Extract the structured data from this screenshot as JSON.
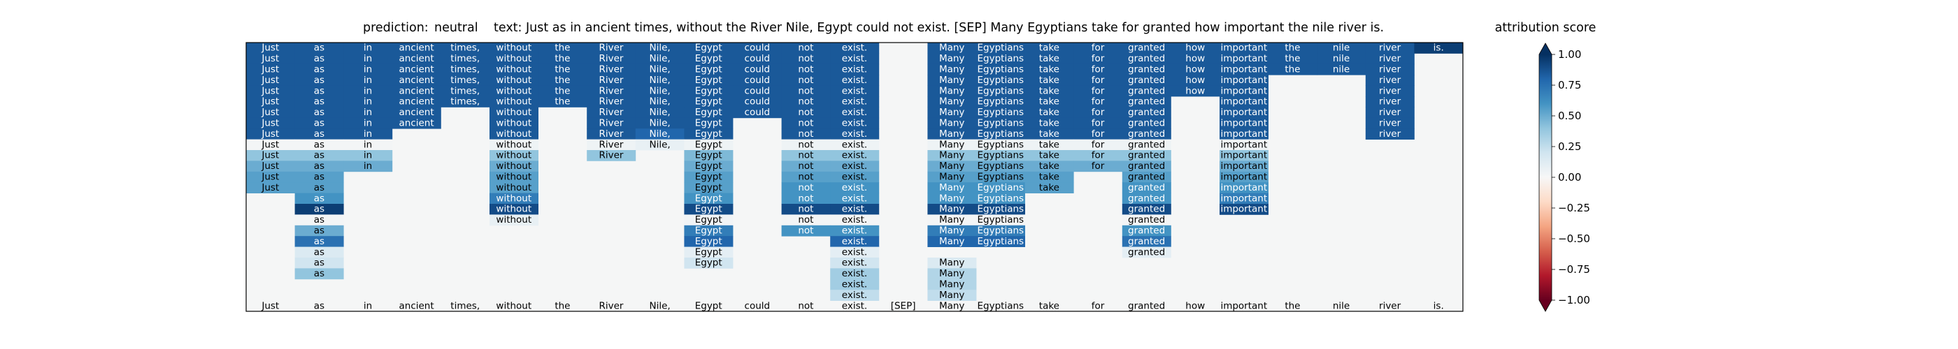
{
  "chart_data": {
    "type": "heatmap",
    "prediction_label": "prediction:",
    "prediction": "neutral",
    "text_label": "text:",
    "text": "Just as in ancient times, without the River Nile, Egypt could not exist. [SEP] Many Egyptians take for granted how important the nile river is.",
    "tokens": [
      "Just",
      "as",
      "in",
      "ancient",
      "times,",
      "without",
      "the",
      "River",
      "Nile,",
      "Egypt",
      "could",
      "not",
      "exist.",
      "[SEP]",
      "Many",
      "Egyptians",
      "take",
      "for",
      "granted",
      "how",
      "important",
      "the",
      "nile",
      "river",
      "is."
    ],
    "colorbar": {
      "title": "attribution score",
      "range": [
        -1,
        1
      ],
      "ticks": [
        "1.00",
        "0.75",
        "0.50",
        "0.25",
        "0.00",
        "−0.25",
        "−0.50",
        "−0.75",
        "−1.00"
      ],
      "colormap": "RdBu",
      "colors": [
        "#67001f",
        "#b2182b",
        "#d6604d",
        "#f4a582",
        "#fddbc7",
        "#f7f7f7",
        "#d1e5f0",
        "#92c5de",
        "#4393c3",
        "#2166ac",
        "#053061"
      ]
    },
    "row_labels": [
      "is.",
      "river",
      "nile",
      "the",
      "important",
      "how",
      "granted",
      "for",
      "take",
      "Egyptians",
      "Many",
      "[SEP]",
      "exist.",
      "not",
      "could",
      "Egypt",
      "Nile,",
      "River",
      "the",
      "without",
      "times,",
      "ancient",
      "in",
      "as",
      "Just"
    ],
    "matrix": [
      [
        0.85,
        0.85,
        0.85,
        0.85,
        0.85,
        0.85,
        0.85,
        0.85,
        0.85,
        0.85,
        0.85,
        0.85,
        0.85,
        null,
        0.85,
        0.85,
        0.85,
        0.85,
        0.85,
        0.85,
        0.85,
        0.85,
        0.85,
        0.85,
        0.95
      ],
      [
        0.85,
        0.85,
        0.85,
        0.85,
        0.85,
        0.85,
        0.85,
        0.85,
        0.85,
        0.85,
        0.85,
        0.85,
        0.85,
        null,
        0.85,
        0.85,
        0.85,
        0.85,
        0.85,
        0.85,
        0.85,
        0.85,
        0.85,
        0.85,
        null
      ],
      [
        0.85,
        0.85,
        0.85,
        0.85,
        0.85,
        0.85,
        0.85,
        0.85,
        0.85,
        0.85,
        0.85,
        0.85,
        0.85,
        null,
        0.85,
        0.85,
        0.85,
        0.85,
        0.85,
        0.85,
        0.85,
        0.85,
        0.85,
        0.85,
        null
      ],
      [
        0.85,
        0.85,
        0.85,
        0.85,
        0.85,
        0.85,
        0.85,
        0.85,
        0.85,
        0.85,
        0.85,
        0.85,
        0.85,
        null,
        0.85,
        0.85,
        0.85,
        0.85,
        0.85,
        0.85,
        0.85,
        null,
        null,
        0.85,
        null
      ],
      [
        0.85,
        0.85,
        0.85,
        0.85,
        0.85,
        0.85,
        0.85,
        0.85,
        0.85,
        0.85,
        0.85,
        0.85,
        0.85,
        null,
        0.85,
        0.85,
        0.85,
        0.85,
        0.85,
        0.85,
        0.85,
        null,
        null,
        0.85,
        null
      ],
      [
        0.85,
        0.85,
        0.85,
        0.85,
        0.85,
        0.85,
        0.85,
        0.85,
        0.85,
        0.85,
        0.85,
        0.85,
        0.85,
        null,
        0.85,
        0.85,
        0.85,
        0.85,
        0.85,
        null,
        0.85,
        null,
        null,
        0.85,
        null
      ],
      [
        0.85,
        0.85,
        0.85,
        0.85,
        null,
        0.85,
        null,
        0.85,
        0.85,
        0.85,
        0.85,
        0.85,
        0.85,
        null,
        0.85,
        0.85,
        0.85,
        0.85,
        0.85,
        null,
        0.85,
        null,
        null,
        0.85,
        null
      ],
      [
        0.85,
        0.85,
        0.85,
        0.85,
        null,
        0.85,
        null,
        0.85,
        0.85,
        0.85,
        null,
        0.85,
        0.85,
        null,
        0.85,
        0.85,
        0.85,
        0.85,
        0.85,
        null,
        0.85,
        null,
        null,
        0.85,
        null
      ],
      [
        0.85,
        0.85,
        0.85,
        null,
        null,
        0.85,
        null,
        0.85,
        0.8,
        0.85,
        null,
        0.85,
        0.85,
        null,
        0.85,
        0.85,
        0.85,
        0.85,
        0.85,
        null,
        0.85,
        null,
        null,
        0.85,
        null
      ],
      [
        0.02,
        0.02,
        0.02,
        null,
        null,
        0.05,
        null,
        0.05,
        0.08,
        0.05,
        null,
        0.05,
        0.05,
        null,
        0.05,
        0.05,
        0.05,
        0.05,
        0.05,
        null,
        0.05,
        null,
        null,
        null,
        null
      ],
      [
        0.4,
        0.4,
        0.4,
        null,
        null,
        0.4,
        null,
        0.4,
        null,
        0.45,
        null,
        0.4,
        0.4,
        null,
        0.4,
        0.4,
        0.4,
        0.4,
        0.4,
        null,
        0.4,
        null,
        null,
        null,
        null
      ],
      [
        0.5,
        0.5,
        0.5,
        null,
        null,
        0.5,
        null,
        null,
        null,
        0.5,
        null,
        0.5,
        0.5,
        null,
        0.5,
        0.5,
        0.5,
        0.5,
        0.5,
        null,
        0.5,
        null,
        null,
        null,
        null
      ],
      [
        0.55,
        0.55,
        null,
        null,
        null,
        0.55,
        null,
        null,
        null,
        0.55,
        null,
        0.55,
        0.55,
        null,
        0.55,
        0.55,
        0.55,
        null,
        0.55,
        null,
        0.55,
        null,
        null,
        null,
        null
      ],
      [
        0.55,
        0.55,
        null,
        null,
        null,
        0.55,
        null,
        null,
        null,
        0.55,
        null,
        0.6,
        0.6,
        null,
        0.6,
        0.6,
        0.55,
        null,
        0.6,
        null,
        0.6,
        null,
        null,
        null,
        null
      ],
      [
        null,
        0.6,
        null,
        null,
        null,
        0.7,
        null,
        null,
        null,
        0.6,
        null,
        0.6,
        0.6,
        null,
        0.6,
        0.6,
        null,
        null,
        0.6,
        null,
        0.7,
        null,
        null,
        null,
        null
      ],
      [
        null,
        0.95,
        null,
        null,
        null,
        0.9,
        null,
        null,
        null,
        0.9,
        null,
        0.9,
        0.9,
        null,
        0.9,
        0.9,
        null,
        null,
        0.9,
        null,
        0.9,
        null,
        null,
        null,
        null
      ],
      [
        null,
        0.02,
        null,
        null,
        null,
        0.08,
        null,
        null,
        null,
        0.03,
        null,
        0.02,
        0.02,
        null,
        0.02,
        0.02,
        null,
        null,
        0.02,
        null,
        null,
        null,
        null,
        null,
        null
      ],
      [
        null,
        0.5,
        null,
        null,
        null,
        null,
        null,
        null,
        null,
        0.7,
        null,
        0.6,
        0.6,
        null,
        0.7,
        0.7,
        null,
        null,
        0.6,
        null,
        null,
        null,
        null,
        null,
        null
      ],
      [
        null,
        0.75,
        null,
        null,
        null,
        null,
        null,
        null,
        null,
        0.8,
        null,
        null,
        0.8,
        null,
        0.8,
        0.8,
        null,
        null,
        0.75,
        null,
        null,
        null,
        null,
        null,
        null
      ],
      [
        null,
        0.15,
        null,
        null,
        null,
        null,
        null,
        null,
        null,
        0.1,
        null,
        null,
        0.1,
        null,
        null,
        null,
        null,
        null,
        0.1,
        null,
        null,
        null,
        null,
        null,
        null
      ],
      [
        null,
        0.2,
        null,
        null,
        null,
        null,
        null,
        null,
        null,
        0.2,
        null,
        null,
        0.2,
        null,
        0.15,
        null,
        null,
        null,
        null,
        null,
        null,
        null,
        null,
        null,
        null
      ],
      [
        null,
        0.4,
        null,
        null,
        null,
        null,
        null,
        null,
        null,
        null,
        null,
        null,
        0.35,
        null,
        0.3,
        null,
        null,
        null,
        null,
        null,
        null,
        null,
        null,
        null,
        null
      ],
      [
        null,
        null,
        null,
        null,
        null,
        null,
        null,
        null,
        null,
        null,
        null,
        null,
        0.35,
        null,
        0.3,
        null,
        null,
        null,
        null,
        null,
        null,
        null,
        null,
        null,
        null
      ],
      [
        null,
        null,
        null,
        null,
        null,
        null,
        null,
        null,
        null,
        null,
        null,
        null,
        0.25,
        null,
        0.25,
        null,
        null,
        null,
        null,
        null,
        null,
        null,
        null,
        null,
        null
      ],
      [
        null,
        null,
        null,
        null,
        null,
        null,
        null,
        null,
        null,
        null,
        null,
        null,
        null,
        null,
        null,
        null,
        null,
        null,
        null,
        null,
        null,
        null,
        null,
        null,
        null
      ]
    ]
  }
}
